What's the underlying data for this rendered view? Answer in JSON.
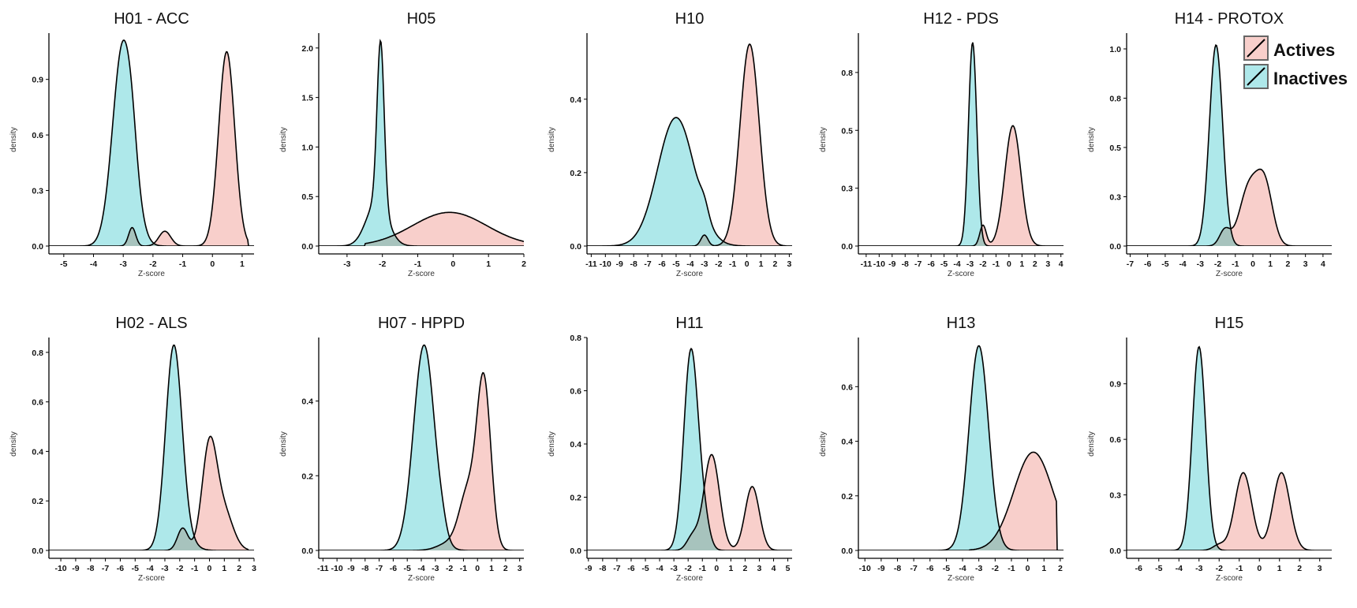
{
  "colors": {
    "actives": "#F8CFCB",
    "inactives": "#AEE8EA",
    "overlap": "#A7C3BD",
    "outline": "#000000"
  },
  "legend": {
    "placement": "top-right",
    "items": [
      {
        "label": "Actives",
        "color": "#F8CFCB"
      },
      {
        "label": "Inactives",
        "color": "#AEE8EA"
      }
    ]
  },
  "chart_data": [
    {
      "type": "area",
      "title": "H01 - ACC",
      "xlabel": "Z-score",
      "ylabel": "density",
      "xlim": [
        -5.5,
        1.4
      ],
      "ylim": [
        0,
        1.15
      ],
      "xticks": [
        -5,
        -4,
        -3,
        -2,
        -1,
        0,
        1
      ],
      "yticks": [
        0.0,
        0.3,
        0.6,
        0.9
      ],
      "series": [
        {
          "name": "Inactives",
          "peaks": [
            {
              "mu": -3.0,
              "sd": 0.35,
              "h": 1.1
            },
            {
              "mu": -2.7,
              "sd": 0.15,
              "h": 0.08
            }
          ],
          "range": [
            -5.2,
            1.2
          ]
        },
        {
          "name": "Actives",
          "peaks": [
            {
              "mu": 0.48,
              "sd": 0.27,
              "h": 1.05
            },
            {
              "mu": -1.6,
              "sd": 0.2,
              "h": 0.08
            },
            {
              "mu": -2.7,
              "sd": 0.12,
              "h": 0.1
            }
          ],
          "range": [
            -5.2,
            1.2
          ]
        }
      ]
    },
    {
      "type": "area",
      "title": "H05",
      "xlabel": "Z-score",
      "ylabel": "density",
      "xlim": [
        -3.8,
        2.0
      ],
      "ylim": [
        0,
        2.15
      ],
      "xticks": [
        -3,
        -2,
        -1,
        0,
        1,
        2
      ],
      "yticks": [
        0.0,
        0.5,
        1.0,
        1.5,
        2.0
      ],
      "series": [
        {
          "name": "Inactives",
          "peaks": [
            {
              "mu": -2.05,
              "sd": 0.1,
              "h": 1.65
            },
            {
              "mu": -2.15,
              "sd": 0.3,
              "h": 0.45
            }
          ],
          "range": [
            -3.8,
            2.0
          ]
        },
        {
          "name": "Actives",
          "peaks": [
            {
              "mu": -0.1,
              "sd": 1.05,
              "h": 0.34
            }
          ],
          "range": [
            -2.5,
            2.0
          ]
        }
      ]
    },
    {
      "type": "area",
      "title": "H10",
      "xlabel": "Z-score",
      "ylabel": "density",
      "xlim": [
        -11.3,
        3.2
      ],
      "ylim": [
        0,
        0.58
      ],
      "xticks": [
        -11,
        -10,
        -9,
        -8,
        -7,
        -6,
        -5,
        -4,
        -3,
        -2,
        -1,
        0,
        1,
        2,
        3
      ],
      "yticks": [
        0.0,
        0.2,
        0.4
      ],
      "series": [
        {
          "name": "Inactives",
          "peaks": [
            {
              "mu": -5.0,
              "sd": 1.3,
              "h": 0.35
            },
            {
              "mu": -3.0,
              "sd": 0.3,
              "h": 0.03
            }
          ],
          "range": [
            -11.0,
            2.8
          ]
        },
        {
          "name": "Actives",
          "peaks": [
            {
              "mu": 0.2,
              "sd": 0.68,
              "h": 0.55
            },
            {
              "mu": -3.0,
              "sd": 0.25,
              "h": 0.03
            }
          ],
          "range": [
            -11.0,
            2.8
          ]
        }
      ]
    },
    {
      "type": "area",
      "title": "H12 - PDS",
      "xlabel": "Z-score",
      "ylabel": "density",
      "xlim": [
        -11.6,
        4.2
      ],
      "ylim": [
        0,
        0.92
      ],
      "xticks": [
        -11,
        -10,
        -9,
        -8,
        -7,
        -6,
        -5,
        -4,
        -3,
        -2,
        -1,
        0,
        1,
        2,
        3,
        4
      ],
      "yticks": [
        0.0,
        0.25,
        0.5,
        0.75
      ],
      "series": [
        {
          "name": "Inactives",
          "peaks": [
            {
              "mu": -2.8,
              "sd": 0.32,
              "h": 0.88
            }
          ],
          "range": [
            -11.0,
            3.5
          ]
        },
        {
          "name": "Actives",
          "peaks": [
            {
              "mu": 0.3,
              "sd": 0.62,
              "h": 0.52
            },
            {
              "mu": -2.0,
              "sd": 0.25,
              "h": 0.09
            }
          ],
          "range": [
            -11.0,
            3.5
          ]
        }
      ]
    },
    {
      "type": "area",
      "title": "H14 - PROTOX",
      "xlabel": "Z-score",
      "ylabel": "density",
      "xlim": [
        -7.2,
        4.5
      ],
      "ylim": [
        0,
        1.08
      ],
      "xticks": [
        -7,
        -6,
        -5,
        -4,
        -3,
        -2,
        -1,
        0,
        1,
        2,
        3,
        4
      ],
      "yticks": [
        0.0,
        0.25,
        0.5,
        0.75,
        1.0
      ],
      "series": [
        {
          "name": "Inactives",
          "peaks": [
            {
              "mu": -2.1,
              "sd": 0.38,
              "h": 1.02
            }
          ],
          "range": [
            -6.0,
            3.5
          ]
        },
        {
          "name": "Actives",
          "peaks": [
            {
              "mu": -0.2,
              "sd": 0.55,
              "h": 0.3
            },
            {
              "mu": 0.7,
              "sd": 0.45,
              "h": 0.28
            },
            {
              "mu": -1.6,
              "sd": 0.3,
              "h": 0.08
            }
          ],
          "range": [
            -6.0,
            3.5
          ]
        }
      ]
    },
    {
      "type": "area",
      "title": "H02 - ALS",
      "xlabel": "Z-score",
      "ylabel": "density",
      "xlim": [
        -10.8,
        3.0
      ],
      "ylim": [
        0,
        0.86
      ],
      "xticks": [
        -10,
        -9,
        -8,
        -7,
        -6,
        -5,
        -4,
        -3,
        -2,
        -1,
        0,
        1,
        2,
        3
      ],
      "yticks": [
        0.0,
        0.2,
        0.4,
        0.6,
        0.8
      ],
      "series": [
        {
          "name": "Inactives",
          "peaks": [
            {
              "mu": -2.4,
              "sd": 0.55,
              "h": 0.82
            },
            {
              "mu": -1.5,
              "sd": 0.6,
              "h": 0.03
            }
          ],
          "range": [
            -10.4,
            2.6
          ]
        },
        {
          "name": "Actives",
          "peaks": [
            {
              "mu": 0.0,
              "sd": 0.5,
              "h": 0.42
            },
            {
              "mu": 1.0,
              "sd": 0.6,
              "h": 0.15
            },
            {
              "mu": -1.8,
              "sd": 0.35,
              "h": 0.09
            }
          ],
          "range": [
            -10.4,
            2.6
          ]
        }
      ]
    },
    {
      "type": "area",
      "title": "H07 - HPPD",
      "xlabel": "Z-score",
      "ylabel": "density",
      "xlim": [
        -11.3,
        3.3
      ],
      "ylim": [
        0,
        0.57
      ],
      "xticks": [
        -11,
        -10,
        -9,
        -8,
        -7,
        -6,
        -5,
        -4,
        -3,
        -2,
        -1,
        0,
        1,
        2,
        3
      ],
      "yticks": [
        0.0,
        0.2,
        0.4
      ],
      "series": [
        {
          "name": "Inactives",
          "peaks": [
            {
              "mu": -3.8,
              "sd": 0.75,
              "h": 0.55
            },
            {
              "mu": -2.5,
              "sd": 0.3,
              "h": 0.02
            }
          ],
          "range": [
            -11.0,
            3.0
          ]
        },
        {
          "name": "Actives",
          "peaks": [
            {
              "mu": 0.45,
              "sd": 0.5,
              "h": 0.45
            },
            {
              "mu": -0.7,
              "sd": 0.6,
              "h": 0.15
            },
            {
              "mu": -2.0,
              "sd": 0.8,
              "h": 0.02
            }
          ],
          "range": [
            -11.0,
            3.0
          ]
        }
      ]
    },
    {
      "type": "area",
      "title": "H11",
      "xlabel": "Z-score",
      "ylabel": "density",
      "xlim": [
        -9.1,
        5.3
      ],
      "ylim": [
        0,
        0.8
      ],
      "xticks": [
        -9,
        -8,
        -7,
        -6,
        -5,
        -4,
        -3,
        -2,
        -1,
        0,
        1,
        2,
        3,
        4,
        5
      ],
      "yticks": [
        0.0,
        0.2,
        0.4,
        0.6,
        0.8
      ],
      "series": [
        {
          "name": "Inactives",
          "peaks": [
            {
              "mu": -1.8,
              "sd": 0.5,
              "h": 0.75
            },
            {
              "mu": -0.9,
              "sd": 0.4,
              "h": 0.1
            }
          ],
          "range": [
            -8.8,
            4.8
          ]
        },
        {
          "name": "Actives",
          "peaks": [
            {
              "mu": -0.35,
              "sd": 0.55,
              "h": 0.36
            },
            {
              "mu": 2.5,
              "sd": 0.5,
              "h": 0.24
            },
            {
              "mu": -1.7,
              "sd": 0.4,
              "h": 0.05
            }
          ],
          "range": [
            -8.8,
            4.8
          ]
        }
      ]
    },
    {
      "type": "area",
      "title": "H13",
      "xlabel": "Z-score",
      "ylabel": "density",
      "xlim": [
        -10.4,
        2.2
      ],
      "ylim": [
        0,
        0.78
      ],
      "xticks": [
        -10,
        -9,
        -8,
        -7,
        -6,
        -5,
        -4,
        -3,
        -2,
        -1,
        0,
        1,
        2
      ],
      "yticks": [
        0.0,
        0.2,
        0.4,
        0.6
      ],
      "series": [
        {
          "name": "Inactives",
          "peaks": [
            {
              "mu": -3.0,
              "sd": 0.6,
              "h": 0.75
            }
          ],
          "range": [
            -10.0,
            1.8
          ]
        },
        {
          "name": "Actives",
          "peaks": [
            {
              "mu": 0.35,
              "sd": 1.2,
              "h": 0.36
            }
          ],
          "range": [
            -3.6,
            1.8
          ]
        }
      ]
    },
    {
      "type": "area",
      "title": "H15",
      "xlabel": "Z-score",
      "ylabel": "density",
      "xlim": [
        -6.6,
        3.6
      ],
      "ylim": [
        0,
        1.15
      ],
      "xticks": [
        -6,
        -5,
        -4,
        -3,
        -2,
        -1,
        0,
        1,
        2,
        3
      ],
      "yticks": [
        0.0,
        0.3,
        0.6,
        0.9
      ],
      "series": [
        {
          "name": "Inactives",
          "peaks": [
            {
              "mu": -3.0,
              "sd": 0.33,
              "h": 1.1
            }
          ],
          "range": [
            -6.0,
            3.2
          ]
        },
        {
          "name": "Actives",
          "peaks": [
            {
              "mu": -0.8,
              "sd": 0.42,
              "h": 0.42
            },
            {
              "mu": 1.1,
              "sd": 0.42,
              "h": 0.42
            },
            {
              "mu": -2.0,
              "sd": 0.3,
              "h": 0.03
            }
          ],
          "range": [
            -6.0,
            3.2
          ]
        }
      ]
    }
  ]
}
